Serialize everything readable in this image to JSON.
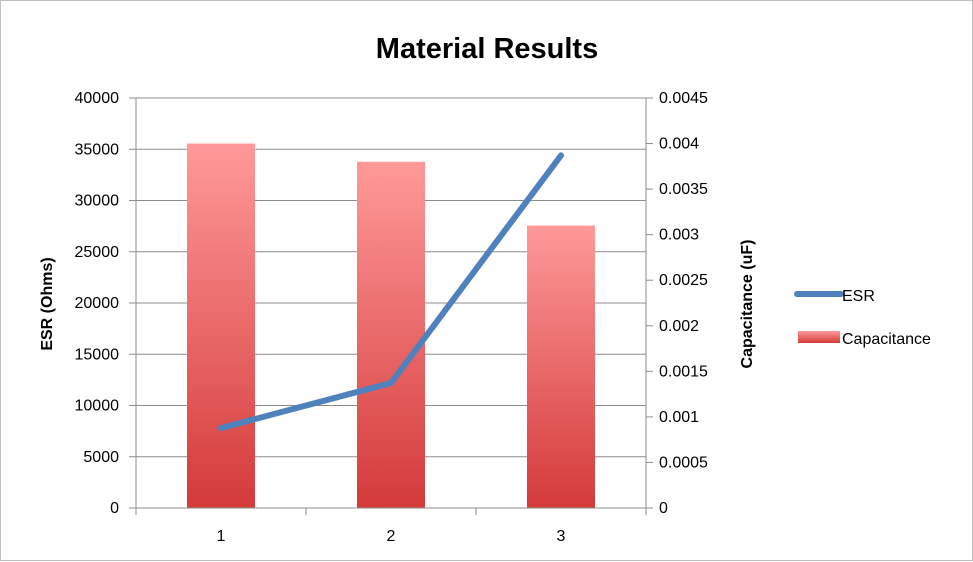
{
  "chart_data": {
    "type": "bar",
    "title": "Material Results",
    "categories": [
      "1",
      "2",
      "3"
    ],
    "y_left": {
      "label": "ESR (Ohms)",
      "range": [
        0,
        40000
      ],
      "ticks": [
        "0",
        "5000",
        "10000",
        "15000",
        "20000",
        "25000",
        "30000",
        "35000",
        "40000"
      ]
    },
    "y_right": {
      "label": "Capacitance (uF)",
      "range": [
        0,
        0.0045
      ],
      "ticks": [
        "0",
        "0.0005",
        "0.001",
        "0.0015",
        "0.002",
        "0.0025",
        "0.003",
        "0.0035",
        "0.004",
        "0.0045"
      ]
    },
    "grid": true,
    "legend_position": "right",
    "series": [
      {
        "name": "ESR",
        "kind": "line",
        "axis": "left",
        "color": "#4f81bd",
        "values": [
          7800,
          12200,
          34400
        ]
      },
      {
        "name": "Capacitance",
        "kind": "bar",
        "axis": "right",
        "color_top": "#ff9999",
        "color_bottom": "#d43a3a",
        "values": [
          0.004,
          0.0038,
          0.0031
        ]
      }
    ]
  }
}
